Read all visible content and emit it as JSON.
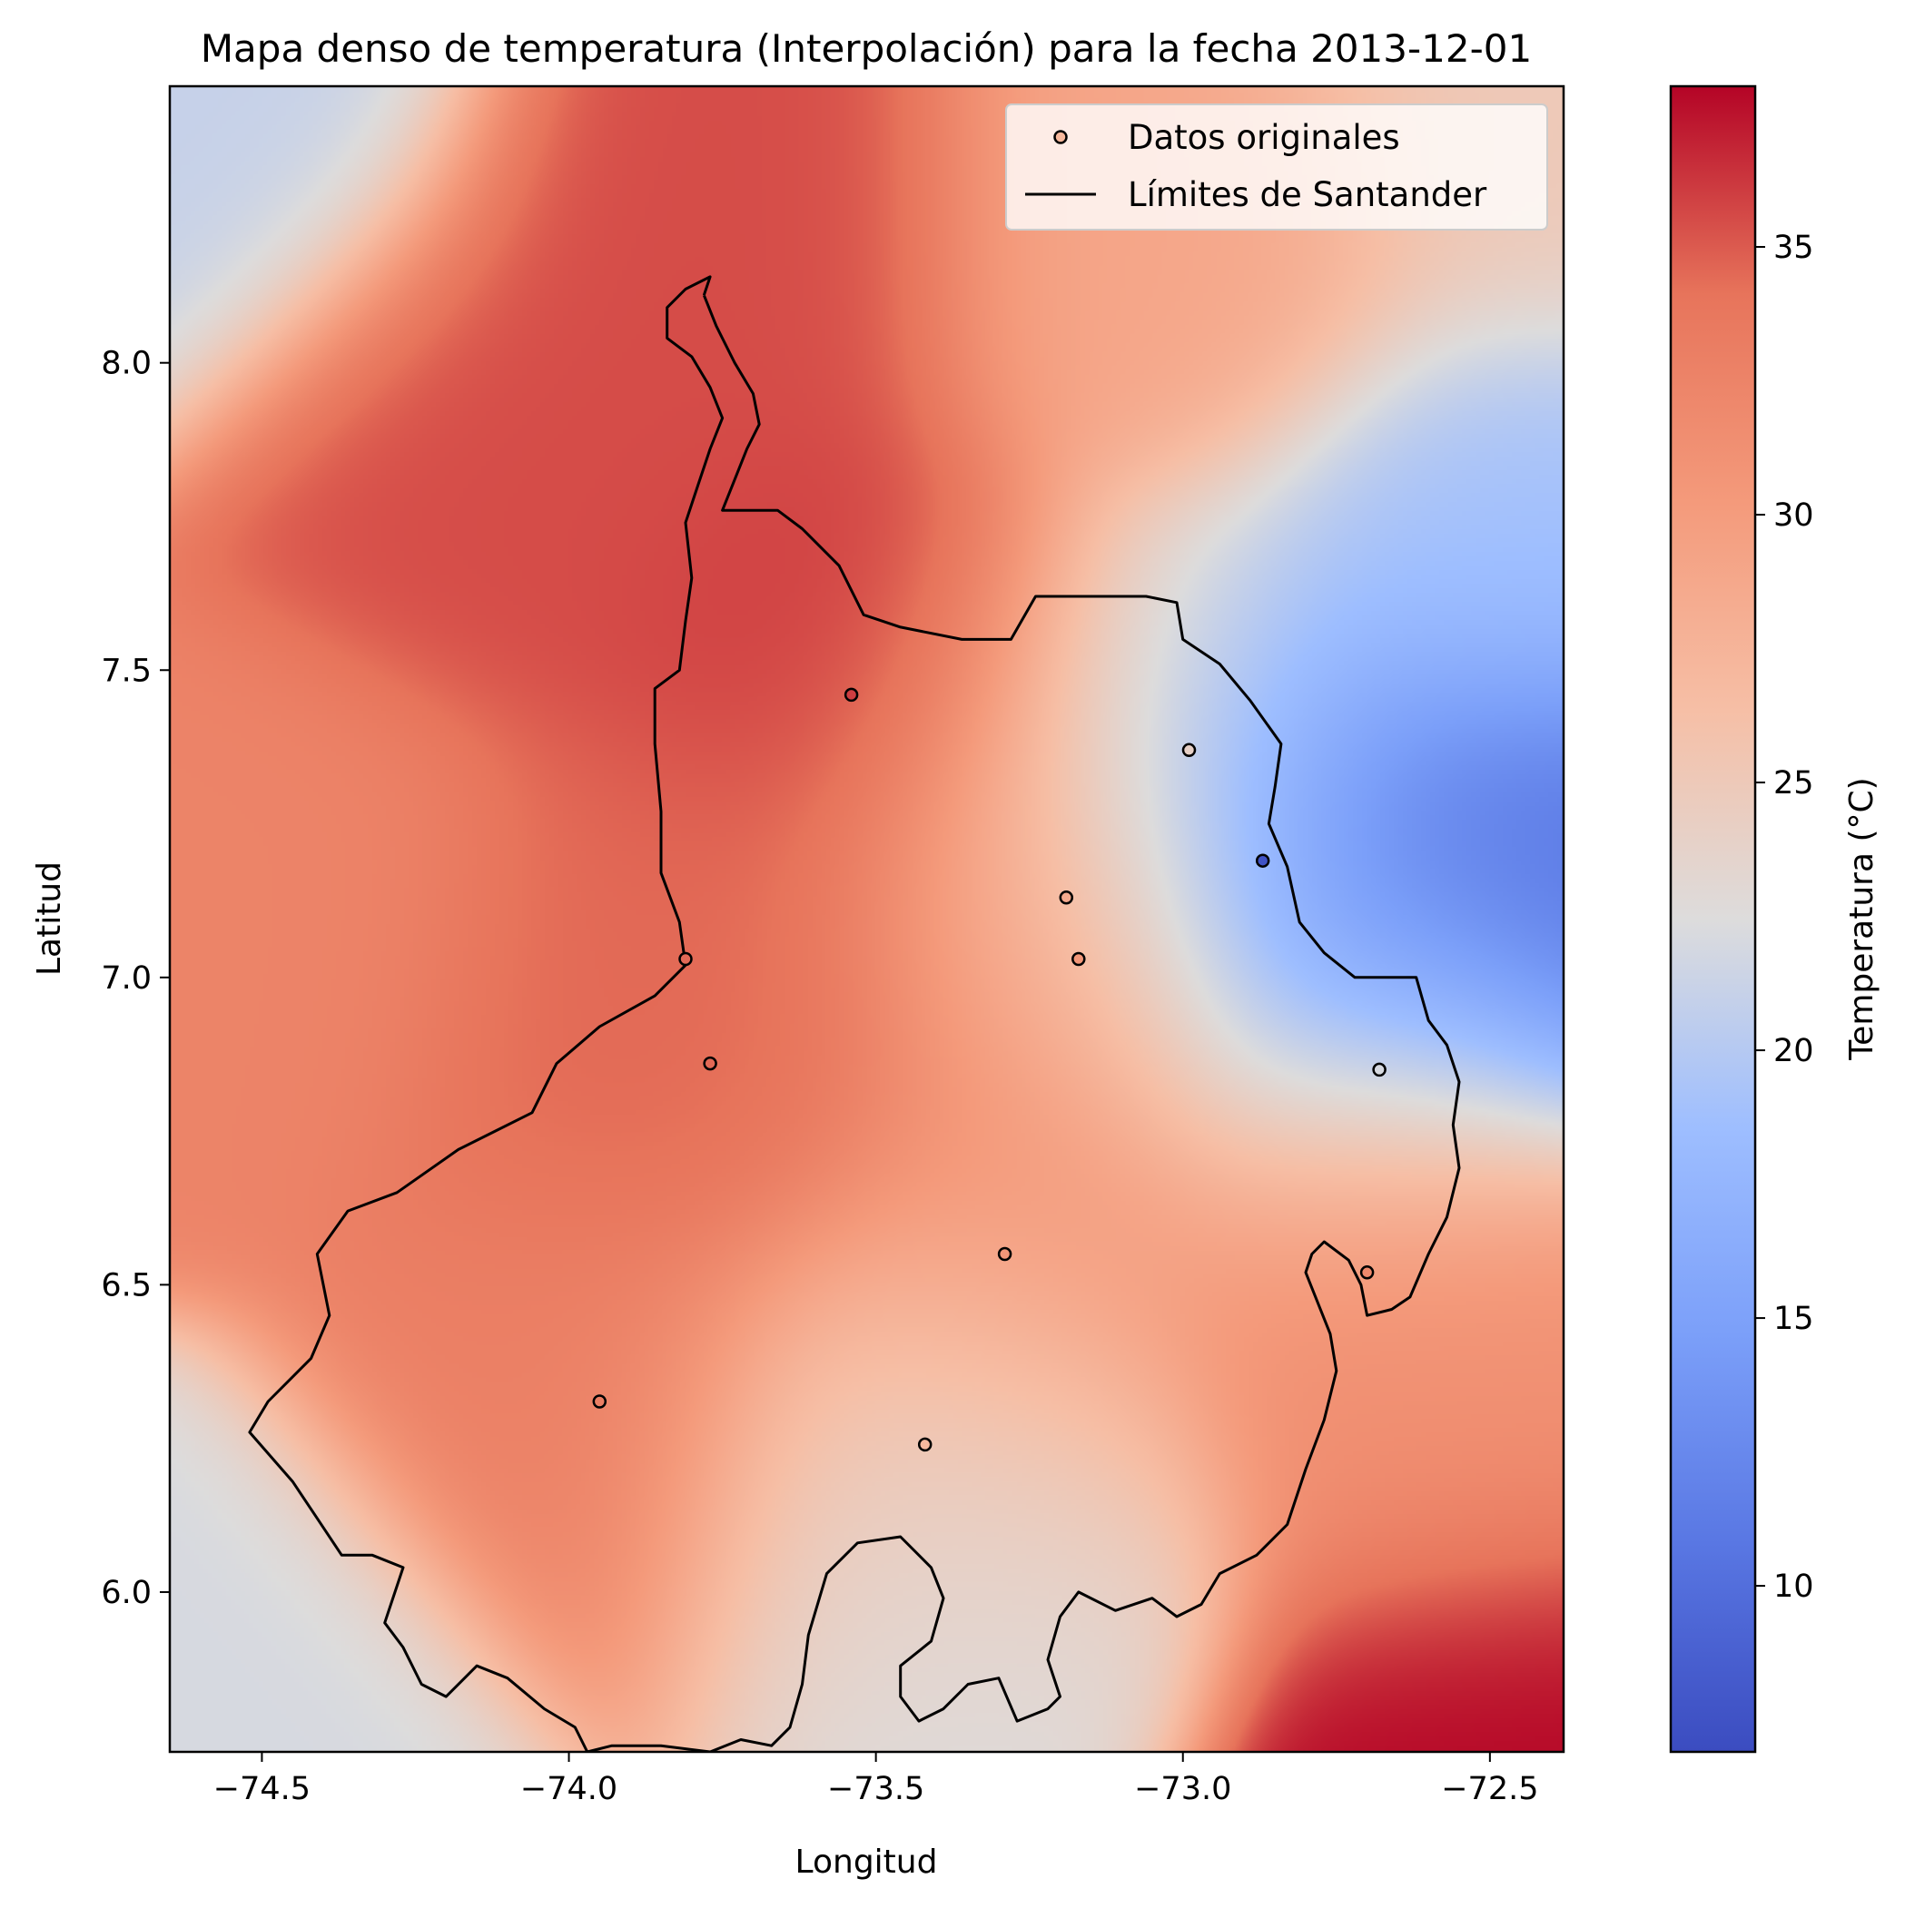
{
  "chart_data": {
    "type": "heatmap",
    "title": "Mapa denso de temperatura (Interpolación) para la fecha 2013-12-01",
    "xlabel": "Longitud",
    "ylabel": "Latitud",
    "xlim": [
      -74.65,
      -72.38
    ],
    "ylim": [
      5.74,
      8.45
    ],
    "xticks": [
      -74.5,
      -74.0,
      -73.5,
      -73.0,
      -72.5
    ],
    "xtick_labels": [
      "−74.5",
      "−74.0",
      "−73.5",
      "−73.0",
      "−72.5"
    ],
    "yticks": [
      6.0,
      6.5,
      7.0,
      7.5,
      8.0
    ],
    "ytick_labels": [
      "6.0",
      "6.5",
      "7.0",
      "7.5",
      "8.0"
    ],
    "colormap": "coolwarm",
    "colorbar": {
      "label": "Temperatura (°C)",
      "range": [
        6.9,
        38.0
      ],
      "ticks": [
        10,
        15,
        20,
        25,
        30,
        35
      ],
      "tick_labels": [
        "10",
        "15",
        "20",
        "25",
        "30",
        "35"
      ]
    },
    "legend": {
      "placement": "upper-right",
      "entries": [
        "Datos originales",
        "Límites de Santander"
      ]
    },
    "series": [
      {
        "name": "Datos originales",
        "kind": "scatter",
        "points": [
          {
            "x": -73.54,
            "y": 7.46,
            "temp": 36.0
          },
          {
            "x": -72.99,
            "y": 7.37,
            "temp": 24.0
          },
          {
            "x": -72.87,
            "y": 7.19,
            "temp": 7.5
          },
          {
            "x": -73.19,
            "y": 7.13,
            "temp": 28.5
          },
          {
            "x": -73.17,
            "y": 7.03,
            "temp": 30.5
          },
          {
            "x": -73.81,
            "y": 7.03,
            "temp": 34.5
          },
          {
            "x": -73.77,
            "y": 6.86,
            "temp": 34.5
          },
          {
            "x": -72.68,
            "y": 6.85,
            "temp": 22.0
          },
          {
            "x": -73.29,
            "y": 6.55,
            "temp": 30.5
          },
          {
            "x": -72.7,
            "y": 6.52,
            "temp": 32.0
          },
          {
            "x": -73.95,
            "y": 6.31,
            "temp": 33.0
          },
          {
            "x": -73.42,
            "y": 6.24,
            "temp": 27.0
          }
        ]
      },
      {
        "name": "Límites de Santander",
        "kind": "line",
        "color": "#000000",
        "path": [
          [
            -73.78,
            8.11
          ],
          [
            -73.76,
            8.06
          ],
          [
            -73.73,
            8.0
          ],
          [
            -73.7,
            7.95
          ],
          [
            -73.69,
            7.9
          ],
          [
            -73.71,
            7.86
          ],
          [
            -73.73,
            7.81
          ],
          [
            -73.75,
            7.76
          ],
          [
            -73.66,
            7.76
          ],
          [
            -73.62,
            7.73
          ],
          [
            -73.56,
            7.67
          ],
          [
            -73.52,
            7.59
          ],
          [
            -73.46,
            7.57
          ],
          [
            -73.36,
            7.55
          ],
          [
            -73.28,
            7.55
          ],
          [
            -73.24,
            7.62
          ],
          [
            -73.15,
            7.62
          ],
          [
            -73.06,
            7.62
          ],
          [
            -73.01,
            7.61
          ],
          [
            -73.0,
            7.55
          ],
          [
            -72.94,
            7.51
          ],
          [
            -72.89,
            7.45
          ],
          [
            -72.84,
            7.38
          ],
          [
            -72.85,
            7.31
          ],
          [
            -72.86,
            7.25
          ],
          [
            -72.83,
            7.18
          ],
          [
            -72.81,
            7.09
          ],
          [
            -72.77,
            7.04
          ],
          [
            -72.72,
            7.0
          ],
          [
            -72.67,
            7.0
          ],
          [
            -72.62,
            7.0
          ],
          [
            -72.6,
            6.93
          ],
          [
            -72.57,
            6.89
          ],
          [
            -72.55,
            6.83
          ],
          [
            -72.56,
            6.76
          ],
          [
            -72.55,
            6.69
          ],
          [
            -72.57,
            6.61
          ],
          [
            -72.6,
            6.55
          ],
          [
            -72.63,
            6.48
          ],
          [
            -72.66,
            6.46
          ],
          [
            -72.7,
            6.45
          ],
          [
            -72.71,
            6.5
          ],
          [
            -72.73,
            6.54
          ],
          [
            -72.77,
            6.57
          ],
          [
            -72.79,
            6.55
          ],
          [
            -72.8,
            6.52
          ],
          [
            -72.78,
            6.47
          ],
          [
            -72.76,
            6.42
          ],
          [
            -72.75,
            6.36
          ],
          [
            -72.77,
            6.28
          ],
          [
            -72.8,
            6.2
          ],
          [
            -72.83,
            6.11
          ],
          [
            -72.88,
            6.06
          ],
          [
            -72.94,
            6.03
          ],
          [
            -72.97,
            5.98
          ],
          [
            -73.01,
            5.96
          ],
          [
            -73.05,
            5.99
          ],
          [
            -73.11,
            5.97
          ],
          [
            -73.17,
            6.0
          ],
          [
            -73.2,
            5.96
          ],
          [
            -73.22,
            5.89
          ],
          [
            -73.2,
            5.83
          ],
          [
            -73.22,
            5.81
          ],
          [
            -73.27,
            5.79
          ],
          [
            -73.3,
            5.86
          ],
          [
            -73.35,
            5.85
          ],
          [
            -73.39,
            5.81
          ],
          [
            -73.43,
            5.79
          ],
          [
            -73.46,
            5.83
          ],
          [
            -73.46,
            5.88
          ],
          [
            -73.41,
            5.92
          ],
          [
            -73.39,
            5.99
          ],
          [
            -73.41,
            6.04
          ],
          [
            -73.46,
            6.09
          ],
          [
            -73.53,
            6.08
          ],
          [
            -73.58,
            6.03
          ],
          [
            -73.61,
            5.93
          ],
          [
            -73.62,
            5.85
          ],
          [
            -73.64,
            5.78
          ],
          [
            -73.67,
            5.75
          ],
          [
            -73.72,
            5.76
          ],
          [
            -73.77,
            5.74
          ],
          [
            -73.85,
            5.75
          ],
          [
            -73.93,
            5.75
          ],
          [
            -73.97,
            5.74
          ],
          [
            -73.99,
            5.78
          ],
          [
            -74.04,
            5.81
          ],
          [
            -74.1,
            5.86
          ],
          [
            -74.15,
            5.88
          ],
          [
            -74.2,
            5.83
          ],
          [
            -74.24,
            5.85
          ],
          [
            -74.27,
            5.91
          ],
          [
            -74.3,
            5.95
          ],
          [
            -74.27,
            6.04
          ],
          [
            -74.32,
            6.06
          ],
          [
            -74.37,
            6.06
          ],
          [
            -74.41,
            6.12
          ],
          [
            -74.45,
            6.18
          ],
          [
            -74.52,
            6.26
          ],
          [
            -74.49,
            6.31
          ],
          [
            -74.42,
            6.38
          ],
          [
            -74.39,
            6.45
          ],
          [
            -74.41,
            6.55
          ],
          [
            -74.36,
            6.62
          ],
          [
            -74.28,
            6.65
          ],
          [
            -74.18,
            6.72
          ],
          [
            -74.12,
            6.75
          ],
          [
            -74.06,
            6.78
          ],
          [
            -74.02,
            6.86
          ],
          [
            -73.95,
            6.92
          ],
          [
            -73.86,
            6.97
          ],
          [
            -73.81,
            7.02
          ],
          [
            -73.82,
            7.09
          ],
          [
            -73.85,
            7.17
          ],
          [
            -73.85,
            7.27
          ],
          [
            -73.86,
            7.38
          ],
          [
            -73.86,
            7.47
          ],
          [
            -73.82,
            7.5
          ],
          [
            -73.81,
            7.58
          ],
          [
            -73.8,
            7.65
          ],
          [
            -73.81,
            7.74
          ],
          [
            -73.79,
            7.8
          ],
          [
            -73.77,
            7.86
          ],
          [
            -73.75,
            7.91
          ],
          [
            -73.77,
            7.96
          ],
          [
            -73.8,
            8.01
          ],
          [
            -73.84,
            8.04
          ],
          [
            -73.84,
            8.09
          ],
          [
            -73.81,
            8.12
          ],
          [
            -73.77,
            8.14
          ],
          [
            -73.78,
            8.11
          ]
        ]
      }
    ]
  }
}
